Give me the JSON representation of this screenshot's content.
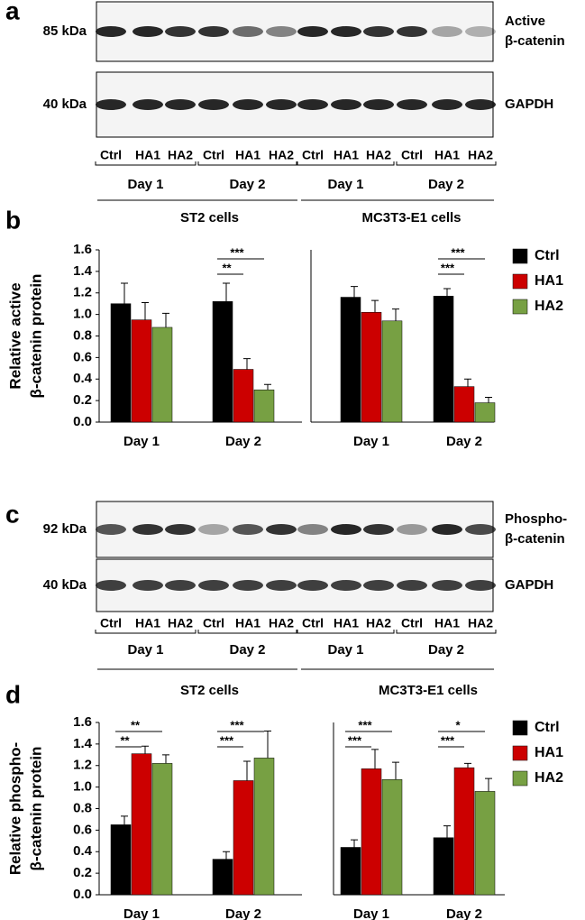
{
  "panel_labels": [
    "a",
    "b",
    "c",
    "d"
  ],
  "blots": [
    {
      "rows": [
        {
          "size": "85 kDa",
          "target": [
            "Active",
            "β-catenin"
          ]
        },
        {
          "size": "40 kDa",
          "target": [
            "GAPDH"
          ]
        }
      ],
      "lanes": [
        "Ctrl",
        "HA1",
        "HA2",
        "Ctrl",
        "HA1",
        "HA2",
        "Ctrl",
        "HA1",
        "HA2",
        "Ctrl",
        "HA1",
        "HA2"
      ],
      "days": [
        "Day 1",
        "Day 2",
        "Day 1",
        "Day 2"
      ]
    },
    {
      "rows": [
        {
          "size": "92 kDa",
          "target": [
            "Phospho-",
            "β-catenin"
          ]
        },
        {
          "size": "40 kDa",
          "target": [
            "GAPDH"
          ]
        }
      ],
      "lanes": [
        "Ctrl",
        "HA1",
        "HA2",
        "Ctrl",
        "HA1",
        "HA2",
        "Ctrl",
        "HA1",
        "HA2",
        "Ctrl",
        "HA1",
        "HA2"
      ],
      "days": [
        "Day 1",
        "Day 2",
        "Day 1",
        "Day 2"
      ]
    }
  ],
  "chart_data": [
    {
      "type": "bar",
      "title": "ST2 cells",
      "ylabel": [
        "Relative active",
        "β-catenin protein"
      ],
      "categories": [
        "Day 1",
        "Day 2"
      ],
      "series": [
        {
          "color": "#000000",
          "values": [
            1.1,
            1.12
          ],
          "errors": [
            0.19,
            0.17
          ]
        },
        {
          "color": "#cc0000",
          "values": [
            0.95,
            0.49
          ],
          "errors": [
            0.16,
            0.1
          ]
        },
        {
          "color": "#77a043",
          "values": [
            0.88,
            0.3
          ],
          "errors": [
            0.13,
            0.05
          ]
        }
      ],
      "ylim": [
        0,
        1.6
      ],
      "yticks": [
        {
          "value": 0,
          "label": "0.0"
        },
        {
          "value": 0.2,
          "label": "0.2"
        },
        {
          "value": 0.4,
          "label": "0.4"
        },
        {
          "value": 0.6,
          "label": "0.6"
        },
        {
          "value": 0.8,
          "label": "0.8"
        },
        {
          "value": 1,
          "label": "1.0"
        },
        {
          "value": 1.2,
          "label": "1.2"
        },
        {
          "value": 1.4,
          "label": "1.4"
        },
        {
          "value": 1.6,
          "label": "1.6"
        }
      ],
      "significance": [
        {
          "category": 1,
          "pair": [
            0,
            2
          ],
          "label": "***"
        },
        {
          "category": 1,
          "pair": [
            0,
            1
          ],
          "label": "**"
        }
      ]
    },
    {
      "type": "bar",
      "title": "MC3T3-E1 cells",
      "legend": "right",
      "categories": [
        "Day 1",
        "Day 2"
      ],
      "series": [
        {
          "name": "Ctrl",
          "color": "#000000",
          "values": [
            1.16,
            1.17
          ],
          "errors": [
            0.1,
            0.07
          ]
        },
        {
          "name": "HA1",
          "color": "#cc0000",
          "values": [
            1.02,
            0.33
          ],
          "errors": [
            0.11,
            0.07
          ]
        },
        {
          "name": "HA2",
          "color": "#77a043",
          "values": [
            0.94,
            0.18
          ],
          "errors": [
            0.11,
            0.05
          ]
        }
      ],
      "ylim": [
        0,
        1.6
      ],
      "significance": [
        {
          "category": 1,
          "pair": [
            0,
            2
          ],
          "label": "***"
        },
        {
          "category": 1,
          "pair": [
            0,
            1
          ],
          "label": "***"
        }
      ]
    },
    {
      "type": "bar",
      "title": "ST2 cells",
      "ylabel": [
        "Relative phospho-",
        "β-catenin protein"
      ],
      "categories": [
        "Day 1",
        "Day 2"
      ],
      "series": [
        {
          "color": "#000000",
          "values": [
            0.65,
            0.33
          ],
          "errors": [
            0.08,
            0.07
          ]
        },
        {
          "color": "#cc0000",
          "values": [
            1.31,
            1.06
          ],
          "errors": [
            0.07,
            0.18
          ]
        },
        {
          "color": "#77a043",
          "values": [
            1.22,
            1.27
          ],
          "errors": [
            0.08,
            0.25
          ]
        }
      ],
      "ylim": [
        0,
        1.6
      ],
      "yticks": [
        {
          "value": 0,
          "label": "0.0"
        },
        {
          "value": 0.2,
          "label": "0.2"
        },
        {
          "value": 0.4,
          "label": "0.4"
        },
        {
          "value": 0.6,
          "label": "0.6"
        },
        {
          "value": 0.8,
          "label": "0.8"
        },
        {
          "value": 1,
          "label": "1.0"
        },
        {
          "value": 1.2,
          "label": "1.2"
        },
        {
          "value": 1.4,
          "label": "1.4"
        },
        {
          "value": 1.6,
          "label": "1.6"
        }
      ],
      "significance": [
        {
          "category": 0,
          "pair": [
            0,
            2
          ],
          "label": "**"
        },
        {
          "category": 0,
          "pair": [
            0,
            1
          ],
          "label": "**"
        },
        {
          "category": 1,
          "pair": [
            0,
            2
          ],
          "label": "***"
        },
        {
          "category": 1,
          "pair": [
            0,
            1
          ],
          "label": "***"
        }
      ]
    },
    {
      "type": "bar",
      "title": "MC3T3-E1 cells",
      "legend": "right",
      "categories": [
        "Day 1",
        "Day 2"
      ],
      "series": [
        {
          "name": "Ctrl",
          "color": "#000000",
          "values": [
            0.44,
            0.53
          ],
          "errors": [
            0.07,
            0.11
          ]
        },
        {
          "name": "HA1",
          "color": "#cc0000",
          "values": [
            1.17,
            1.18
          ],
          "errors": [
            0.18,
            0.04
          ]
        },
        {
          "name": "HA2",
          "color": "#77a043",
          "values": [
            1.07,
            0.96
          ],
          "errors": [
            0.16,
            0.12
          ]
        }
      ],
      "ylim": [
        0,
        1.6
      ],
      "significance": [
        {
          "category": 0,
          "pair": [
            0,
            2
          ],
          "label": "***"
        },
        {
          "category": 0,
          "pair": [
            0,
            1
          ],
          "label": "***"
        },
        {
          "category": 1,
          "pair": [
            0,
            2
          ],
          "label": "*"
        },
        {
          "category": 1,
          "pair": [
            0,
            1
          ],
          "label": "***"
        }
      ]
    }
  ]
}
